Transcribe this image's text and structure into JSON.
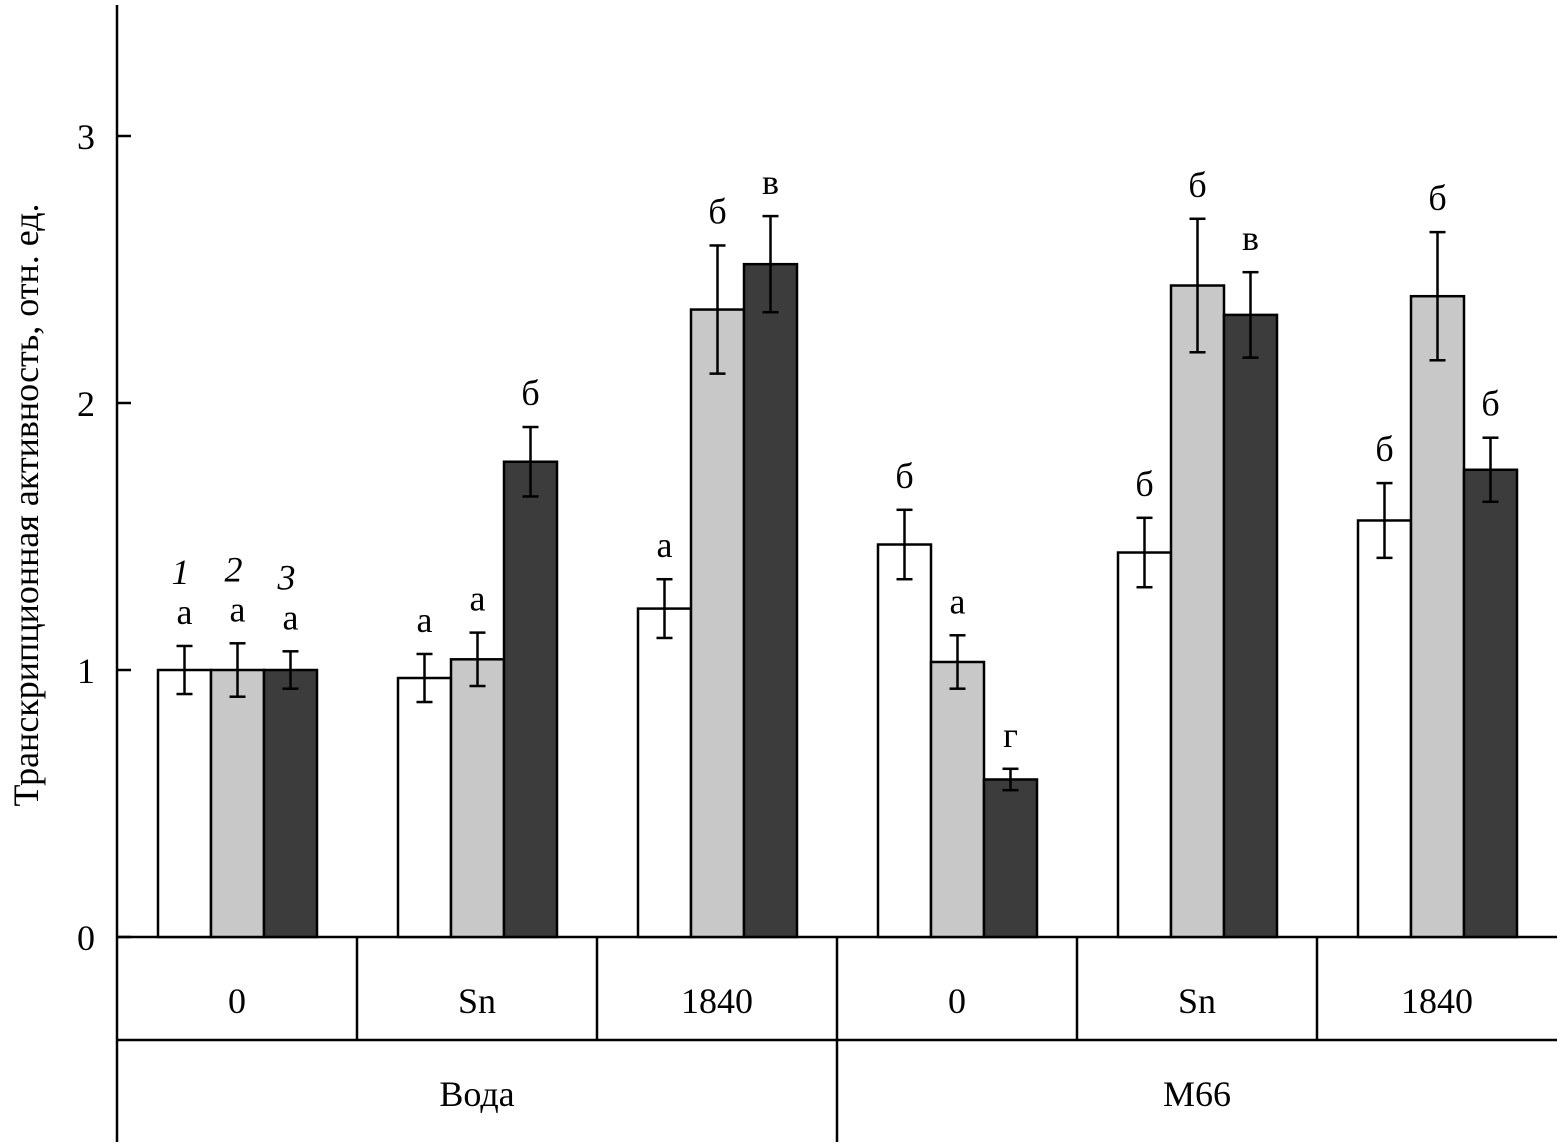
{
  "chart_data": {
    "type": "bar",
    "ylabel": "Транскрипционная активность, отн. ед.",
    "ylim": [
      0,
      3.5
    ],
    "yticks": [
      0,
      1,
      2,
      3
    ],
    "grid": false,
    "categories": [
      "0",
      "Sn",
      "1840",
      "0",
      "Sn",
      "1840"
    ],
    "supercategories": [
      {
        "label": "Вода",
        "span": 3
      },
      {
        "label": "M66",
        "span": 3
      }
    ],
    "series_labels": [
      "1",
      "2",
      "3"
    ],
    "colors": [
      "#ffffff",
      "#c8c8c8",
      "#3c3c3c"
    ],
    "series": [
      {
        "values": [
          1.0,
          0.97,
          1.23,
          1.47,
          1.44,
          1.56
        ],
        "errors": [
          0.09,
          0.09,
          0.11,
          0.13,
          0.13,
          0.14
        ],
        "letters": [
          "а",
          "а",
          "а",
          "б",
          "б",
          "б"
        ]
      },
      {
        "values": [
          1.0,
          1.04,
          2.35,
          1.03,
          2.44,
          2.4
        ],
        "errors": [
          0.1,
          0.1,
          0.24,
          0.1,
          0.25,
          0.24
        ],
        "letters": [
          "а",
          "а",
          "б",
          "а",
          "б",
          "б"
        ]
      },
      {
        "values": [
          1.0,
          1.78,
          2.52,
          0.59,
          2.33,
          1.75
        ],
        "errors": [
          0.07,
          0.13,
          0.18,
          0.04,
          0.16,
          0.12
        ],
        "letters": [
          "а",
          "б",
          "в",
          "г",
          "в",
          "б"
        ]
      }
    ]
  }
}
